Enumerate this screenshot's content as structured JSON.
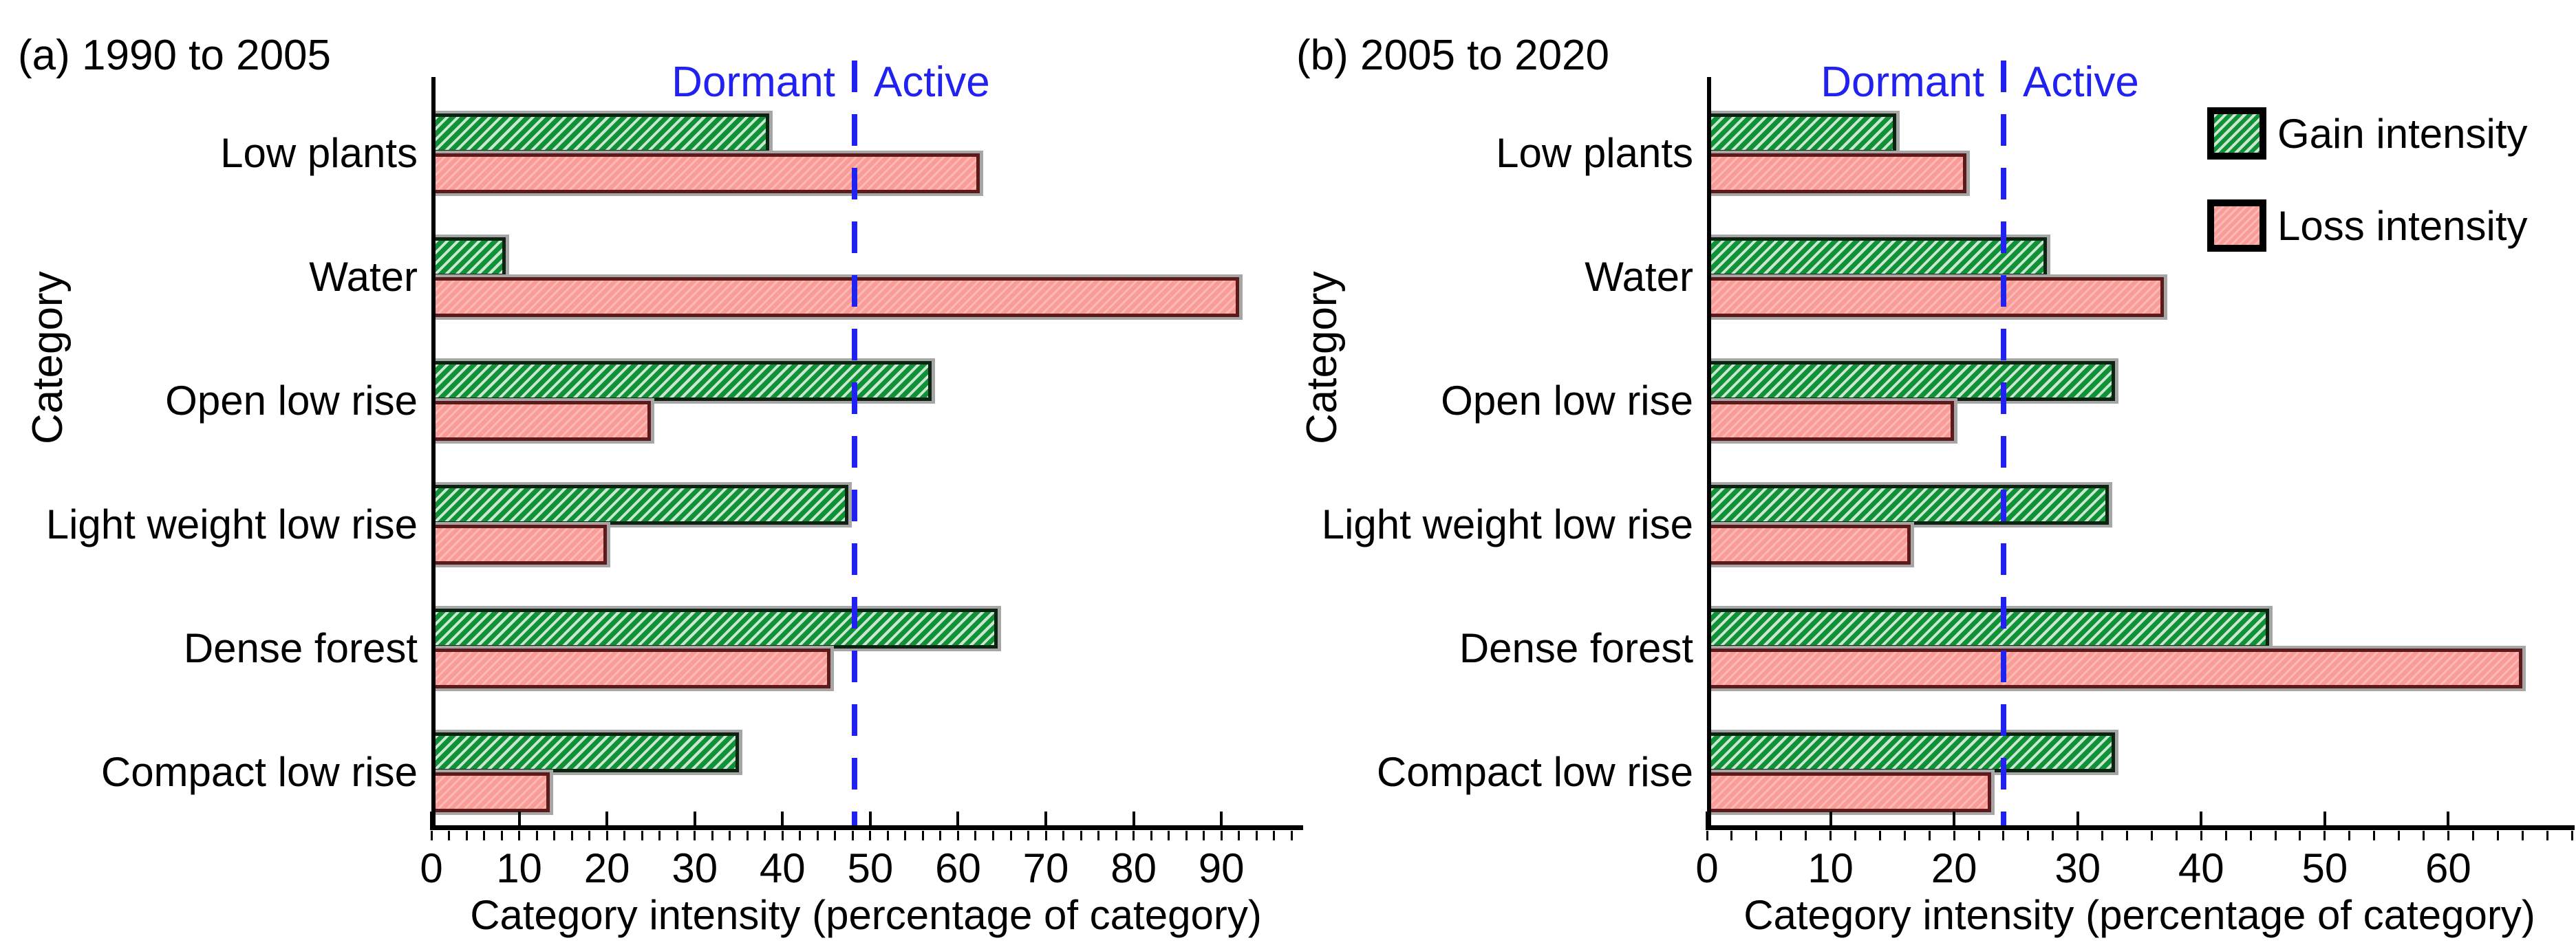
{
  "figure": {
    "background": "#ffffff",
    "colors": {
      "gain_fill": "#109136",
      "gain_hatch": "#d9f2dc",
      "gain_border": "#0b2310",
      "loss_fill": "#f99c97",
      "loss_border": "#5c1a1a",
      "bar_shadow": "#a6a6a6",
      "axis": "#000000",
      "text": "#000000",
      "threshold_blue": "#2121f0"
    },
    "legend": {
      "position": "top-right-of-panel-b",
      "items": [
        {
          "label": "Gain intensity",
          "series": "gain",
          "swatch": "green-diagonal-hatch"
        },
        {
          "label": "Loss intensity",
          "series": "loss",
          "swatch": "pink-plain"
        }
      ]
    }
  },
  "chart_data": [
    {
      "type": "bar",
      "orientation": "horizontal",
      "title": "(a) 1990 to 2005",
      "xlabel": "Category intensity (percentage of category)",
      "ylabel": "Category",
      "categories": [
        "Low plants",
        "Water",
        "Open low rise",
        "Light weight low rise",
        "Dense forest",
        "Compact low rise"
      ],
      "series": [
        {
          "name": "Gain intensity",
          "values": [
            38.5,
            8.5,
            57,
            47.5,
            64.5,
            35
          ]
        },
        {
          "name": "Loss intensity",
          "values": [
            62.5,
            92,
            25,
            20,
            45.5,
            13.5
          ]
        }
      ],
      "xlim": [
        0,
        99
      ],
      "xticks": [
        0,
        10,
        20,
        30,
        40,
        50,
        60,
        70,
        80,
        90
      ],
      "minor_tick_step": 2,
      "grid": false,
      "legend_shown": false,
      "threshold": {
        "value": 48.2,
        "label_left": "Dormant",
        "label_right": "Active"
      }
    },
    {
      "type": "bar",
      "orientation": "horizontal",
      "title": "(b) 2005 to 2020",
      "xlabel": "Category intensity (percentage of category)",
      "ylabel": "Category",
      "categories": [
        "Low plants",
        "Water",
        "Open low rise",
        "Light weight low rise",
        "Dense forest",
        "Compact low rise"
      ],
      "series": [
        {
          "name": "Gain intensity",
          "values": [
            15.3,
            27.5,
            33,
            32.5,
            45.5,
            33
          ]
        },
        {
          "name": "Loss intensity",
          "values": [
            21,
            37,
            20,
            16.5,
            66,
            23
          ]
        }
      ],
      "xlim": [
        0,
        70
      ],
      "xticks": [
        0,
        10,
        20,
        30,
        40,
        50,
        60
      ],
      "minor_tick_step": 2,
      "grid": false,
      "legend_shown": true,
      "threshold": {
        "value": 24,
        "label_left": "Dormant",
        "label_right": "Active"
      }
    }
  ]
}
